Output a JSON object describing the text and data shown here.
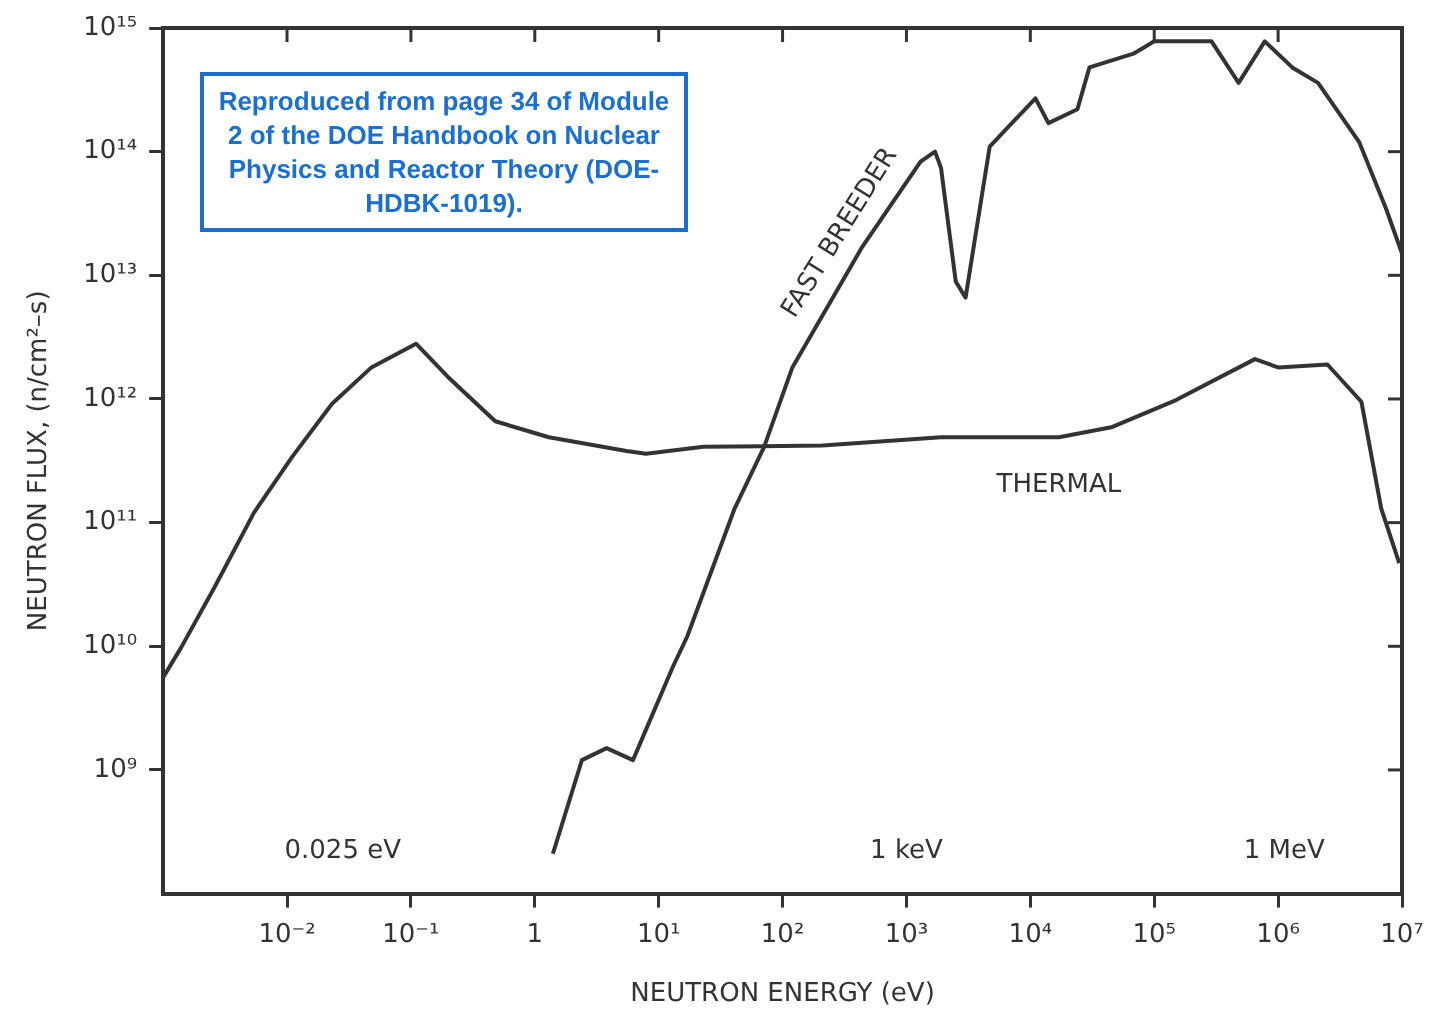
{
  "chart_data": {
    "type": "line",
    "xlabel": "NEUTRON ENERGY (eV)",
    "ylabel": "NEUTRON FLUX, (n/cm²–s)",
    "log": "xy",
    "grid": false,
    "marker": "none",
    "line_style": "solid",
    "xlim": [
      0.001,
      10000000
    ],
    "ylim": [
      100000000,
      1000000000000000
    ],
    "xticks": [
      {
        "value": 0.01,
        "label": "10⁻²"
      },
      {
        "value": 0.1,
        "label": "10⁻¹"
      },
      1,
      {
        "value": 10,
        "label": "10¹"
      },
      {
        "value": 100,
        "label": "10²"
      },
      {
        "value": 1000,
        "label": "10³"
      },
      {
        "value": 10000,
        "label": "10⁴"
      },
      {
        "value": 100000,
        "label": "10⁵"
      },
      {
        "value": 1000000,
        "label": "10⁶"
      },
      {
        "value": 10000000,
        "label": "10⁷"
      }
    ],
    "yticks": [
      {
        "value": 1000000000,
        "label": "10⁹"
      },
      {
        "value": 10000000000,
        "label": "10¹⁰"
      },
      {
        "value": 100000000000,
        "label": "10¹¹"
      },
      {
        "value": 1000000000000,
        "label": "10¹²"
      },
      {
        "value": 10000000000000,
        "label": "10¹³"
      },
      {
        "value": 100000000000000,
        "label": "10¹⁴"
      },
      {
        "value": 1000000000000000,
        "label": "10¹⁵"
      }
    ],
    "series": [
      {
        "name": "FAST BREEDER",
        "color": "#333333",
        "x": [
          1.4,
          2.4,
          3.8,
          6.2,
          13,
          17,
          41,
          71,
          120,
          440,
          1300,
          1700,
          1900,
          2500,
          3000,
          4700,
          6300,
          11000,
          14000,
          24000,
          30000,
          68000,
          100000,
          290000,
          480000,
          780000,
          1300000,
          2100000,
          4500000,
          7400000,
          10000000
        ],
        "values": [
          210000000.0,
          1200000000.0,
          1500000000.0,
          1200000000.0,
          6800000000.0,
          12000000000.0,
          130000000000.0,
          410000000000.0,
          1800000000000.0,
          17000000000000.0,
          83000000000000.0,
          100000000000000.0,
          74000000000000.0,
          8900000000000.0,
          6600000000000.0,
          110000000000000.0,
          150000000000000.0,
          270000000000000.0,
          170000000000000.0,
          220000000000000.0,
          480000000000000.0,
          620000000000000.0,
          780000000000000.0,
          780000000000000.0,
          360000000000000.0,
          780000000000000.0,
          480000000000000.0,
          360000000000000.0,
          120000000000000.0,
          35000000000000.0,
          15000000000000.0
        ]
      },
      {
        "name": "THERMAL",
        "color": "#333333",
        "x": [
          0.001,
          0.0014,
          0.0026,
          0.0054,
          0.011,
          0.023,
          0.048,
          0.11,
          0.2,
          0.48,
          1.3,
          5.5,
          7.9,
          23,
          210,
          1900,
          17000,
          45000,
          150000,
          650000,
          1000000,
          2500000,
          4700000,
          6800000,
          9500000
        ],
        "values": [
          5600000000.0,
          9800000000.0,
          30000000000.0,
          120000000000.0,
          340000000000.0,
          910000000000.0,
          1800000000000.0,
          2800000000000.0,
          1500000000000.0,
          660000000000.0,
          490000000000.0,
          380000000000.0,
          360000000000.0,
          410000000000.0,
          420000000000.0,
          490000000000.0,
          490000000000.0,
          590000000000.0,
          980000000000.0,
          2100000000000.0,
          1800000000000.0,
          1900000000000.0,
          950000000000.0,
          130000000000.0,
          47000000000.0
        ]
      }
    ],
    "annotations": [
      "Reproduced from page 34 of Module 2 of the DOE Handbook on Nuclear Physics and Reactor Theory (DOE-HDBK-1019).",
      "0.025 eV",
      "1 keV",
      "1 MeV"
    ]
  }
}
